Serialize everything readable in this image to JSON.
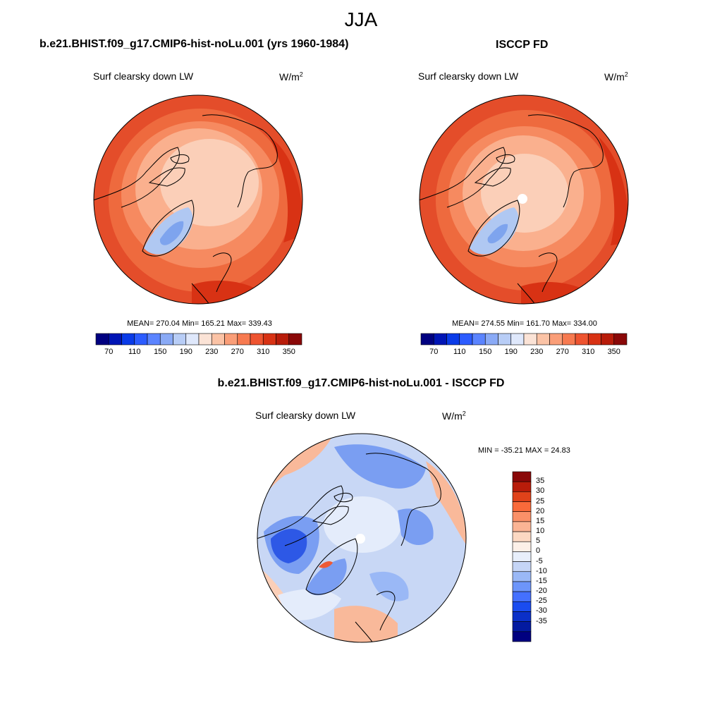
{
  "page": {
    "season": "JJA"
  },
  "panels": [
    {
      "id": "model",
      "title": "b.e21.BHIST.f09_g17.CMIP6-hist-noLu.001 (yrs 1960-1984)",
      "variable": "Surf clearsky down LW",
      "units_base": "W/m",
      "units_exp": "2",
      "stats": "MEAN= 270.04  Min= 165.21  Max= 339.43"
    },
    {
      "id": "obs",
      "title": "ISCCP FD",
      "variable": "Surf clearsky down LW",
      "units_base": "W/m",
      "units_exp": "2",
      "stats": "MEAN= 274.55  Min= 161.70  Max= 334.00"
    },
    {
      "id": "diff",
      "title": "b.e21.BHIST.f09_g17.CMIP6-hist-noLu.001 - ISCCP FD",
      "variable": "Surf clearsky down LW",
      "units_base": "W/m",
      "units_exp": "2",
      "stats": "MIN = -35.21 MAX =  24.83"
    }
  ],
  "colorbar_abs": {
    "colors": [
      "#000080",
      "#0015b5",
      "#0a3be8",
      "#2c5cff",
      "#5b84ff",
      "#8aaaf6",
      "#b8cdf6",
      "#dfe8fb",
      "#fbe3d6",
      "#fbc3a6",
      "#fa9e78",
      "#f77a50",
      "#ee5430",
      "#d83214",
      "#b81c0a",
      "#8a0808"
    ],
    "tick_labels": [
      "70",
      "110",
      "150",
      "190",
      "230",
      "270",
      "310",
      "350"
    ]
  },
  "colorbar_diff": {
    "colors": [
      "#8a0808",
      "#b81c0a",
      "#e0421a",
      "#f96a3a",
      "#fa9068",
      "#fbb494",
      "#fcd8c2",
      "#fdf0e8",
      "#e8effb",
      "#c5d5f6",
      "#9ab8f6",
      "#6d95fa",
      "#4470ff",
      "#1a4cf0",
      "#0b30c8",
      "#031aa0",
      "#000080"
    ],
    "tick_labels": [
      "35",
      "30",
      "25",
      "20",
      "15",
      "10",
      "5",
      "0",
      "-5",
      "-10",
      "-15",
      "-20",
      "-25",
      "-30",
      "-35"
    ]
  },
  "map_colors": {
    "deep": "#e44d2a",
    "outer": "#ee6a3e",
    "mid": "#f68a60",
    "inner": "#fab08e",
    "polar": "#fbcfb8",
    "greenland_lo": "#b0c8f2",
    "greenland_hi": "#7ea4ee",
    "coast": "#000000",
    "diff_base": "#c8d7f5",
    "diff_blue": "#7a9ef2",
    "diff_darkblue": "#2d58e6",
    "diff_pale": "#e4ecfb",
    "diff_orange": "#f9b99a",
    "diff_red": "#ee5a36"
  }
}
